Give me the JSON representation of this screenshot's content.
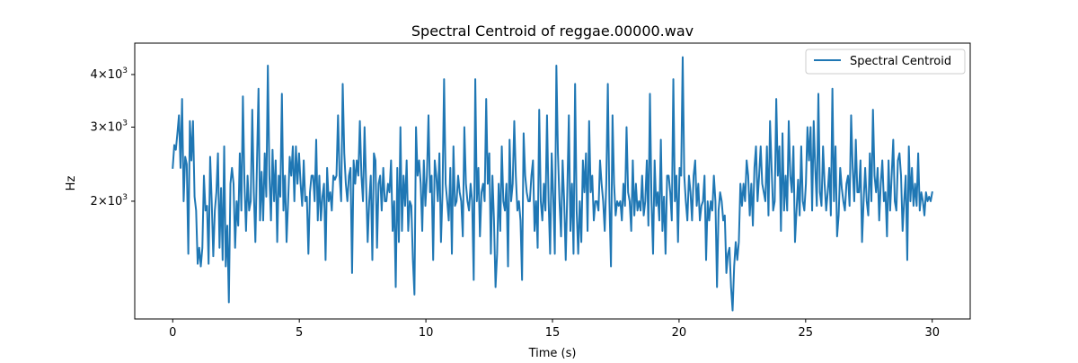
{
  "chart_data": {
    "type": "line",
    "title": "Spectral Centroid of reggae.00000.wav",
    "xlabel": "Time (s)",
    "ylabel": "Hz",
    "xlim": [
      -1.5,
      31.5
    ],
    "ylim": [
      1050,
      4750
    ],
    "yscale": "log",
    "grid": false,
    "legend_position": "top-right",
    "x_ticks": [
      0,
      5,
      10,
      15,
      20,
      25,
      30
    ],
    "x_tick_labels": [
      "0",
      "5",
      "10",
      "15",
      "20",
      "25",
      "30"
    ],
    "y_ticks": [
      2000,
      3000,
      4000
    ],
    "y_tick_labels": [
      {
        "mantissa": "2",
        "base": "10",
        "exp": "3"
      },
      {
        "mantissa": "3",
        "base": "10",
        "exp": "3"
      },
      {
        "mantissa": "4",
        "base": "10",
        "exp": "3"
      }
    ],
    "line_color": "#1f77b4",
    "series": [
      {
        "name": "Spectral Centroid",
        "x_start": 0,
        "x_end": 30,
        "values": [
          2400,
          2720,
          2650,
          2900,
          3200,
          2400,
          3500,
          2000,
          2550,
          2450,
          1500,
          3100,
          2500,
          3100,
          2050,
          1900,
          1420,
          1550,
          1400,
          1550,
          2300,
          1900,
          1950,
          1420,
          2550,
          2000,
          1480,
          1900,
          2100,
          2600,
          1550,
          2150,
          1450,
          2700,
          1400,
          1750,
          1150,
          2200,
          2400,
          2200,
          1550,
          2000,
          1750,
          2600,
          1900,
          3550,
          2200,
          1700,
          2300,
          1900,
          2000,
          3300,
          2100,
          1600,
          2450,
          3700,
          1800,
          2350,
          1800,
          2600,
          2050,
          4200,
          2300,
          1800,
          2650,
          2000,
          2500,
          1600,
          2300,
          2050,
          3600,
          1900,
          2300,
          1600,
          2000,
          2550,
          2300,
          2700,
          2000,
          2700,
          2200,
          2600,
          2200,
          1950,
          2500,
          2000,
          2050,
          1500,
          2100,
          2300,
          2300,
          2000,
          2800,
          1800,
          2300,
          1800,
          2050,
          2200,
          1450,
          2400,
          2000,
          2100,
          1900,
          2300,
          2250,
          2300,
          3200,
          2300,
          2000,
          3800,
          2600,
          2200,
          2000,
          2300,
          2400,
          1350,
          2500,
          2200,
          2500,
          2300,
          3100,
          2300,
          2000,
          3000,
          2200,
          1600,
          2000,
          2300,
          1450,
          2600,
          2500,
          1550,
          2200,
          2300,
          1900,
          2400,
          2000,
          2000,
          2200,
          2100,
          2500,
          1700,
          2000,
          1250,
          2400,
          1600,
          3000,
          1700,
          2300,
          1950,
          2500,
          1700,
          2000,
          1950,
          1450,
          1200,
          3000,
          2300,
          2500,
          2200,
          1700,
          2500,
          1950,
          2300,
          3200,
          2100,
          2300,
          1450,
          2500,
          2300,
          2000,
          2600,
          1600,
          2100,
          3900,
          2200,
          2000,
          1800,
          2400,
          1500,
          2700,
          1950,
          2000,
          2300,
          2100,
          2000,
          1650,
          3000,
          2200,
          2000,
          1900,
          2200,
          2000,
          1300,
          3900,
          2000,
          2400,
          1650,
          2100,
          2200,
          2000,
          3500,
          2200,
          2600,
          1500,
          2300,
          1800,
          1250,
          1500,
          2200,
          1700,
          2700,
          2000,
          1900,
          2200,
          1400,
          2800,
          2000,
          2200,
          3100,
          2300,
          1900,
          2000,
          1800,
          1300,
          2900,
          2300,
          2100,
          2000,
          2000,
          2300,
          2500,
          1700,
          2000,
          1550,
          3300,
          2000,
          1800,
          2200,
          1900,
          3200,
          2000,
          1500,
          2600,
          2050,
          1500,
          4200,
          2600,
          2000,
          1650,
          2500,
          2000,
          1450,
          2100,
          3200,
          1700,
          2200,
          1500,
          3800,
          1900,
          1500,
          2000,
          1600,
          2500,
          2100,
          2600,
          1700,
          3100,
          2100,
          2300,
          1800,
          2000,
          2000,
          1900,
          2500,
          2200,
          2000,
          1700,
          2200,
          3800,
          2000,
          1400,
          3200,
          2200,
          1850,
          2000,
          1950,
          2000,
          1800,
          2200,
          1950,
          3000,
          2100,
          2000,
          1700,
          2500,
          1850,
          2200,
          1900,
          2000,
          1900,
          2300,
          1850,
          2000,
          2500,
          1750,
          3600,
          2000,
          1500,
          2500,
          1950,
          2100,
          1800,
          2800,
          1700,
          2050,
          1500,
          2300,
          2300,
          2100,
          1800,
          3900,
          2000,
          2300,
          1600,
          2400,
          2300,
          4400,
          2300,
          2000,
          1800,
          2300,
          2100,
          1800,
          2300,
          2500,
          1950,
          2200,
          1800,
          1950,
          2000,
          2300,
          1450,
          2000,
          1800,
          2000,
          1900,
          2300,
          2000,
          1250,
          1900,
          2100,
          2000,
          1800,
          1850,
          1350,
          1500,
          1550,
          1250,
          1100,
          1400,
          1600,
          1450,
          1600,
          2200,
          1950,
          2200,
          2000,
          2500,
          2300,
          1850,
          2200,
          1750,
          2400,
          2700,
          2000,
          2300,
          2700,
          2200,
          2100,
          2000,
          2700,
          1850,
          3100,
          2400,
          1900,
          2000,
          3500,
          2300,
          2700,
          1700,
          2900,
          1900,
          2300,
          1900,
          3100,
          2300,
          2100,
          2700,
          1600,
          1900,
          2250,
          1850,
          2700,
          2000,
          1900,
          2200,
          3000,
          2500,
          3000,
          1900,
          3100,
          2400,
          1950,
          3600,
          2100,
          1950,
          2700,
          2200,
          1900,
          2100,
          2400,
          1850,
          3700,
          2000,
          2700,
          1650,
          1850,
          2400,
          2150,
          2000,
          1900,
          2200,
          2300,
          1950,
          3200,
          2400,
          2000,
          2800,
          2100,
          2100,
          2500,
          1600,
          2000,
          2400,
          2000,
          1850,
          2600,
          2000,
          3300,
          2300,
          2100,
          2400,
          1800,
          2200,
          2500,
          2000,
          2100,
          1650,
          2500,
          1900,
          2300,
          2800,
          2000,
          1900,
          2500,
          2600,
          2300,
          1700,
          2000,
          2300,
          1450,
          2700,
          2000,
          2400,
          1950,
          2200,
          1950,
          2600,
          1900,
          2100,
          2000,
          1850,
          2100,
          2000,
          2050,
          2000,
          2100
        ]
      }
    ]
  }
}
